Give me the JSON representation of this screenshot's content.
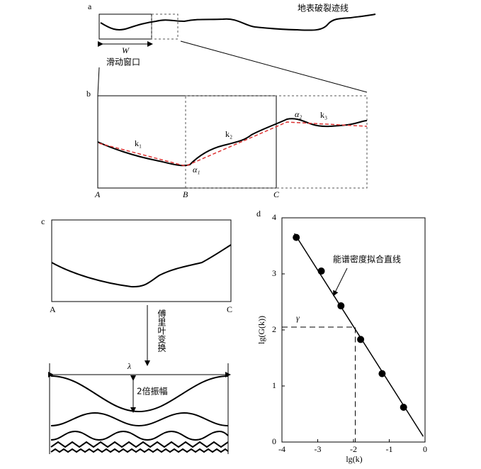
{
  "panel_a": {
    "label": "a",
    "trace_label": "地表破裂迹线",
    "window_width": "W",
    "window_label": "滑动窗口"
  },
  "panel_b": {
    "label": "b",
    "slopes": [
      "k₁",
      "k₂",
      "k₃"
    ],
    "angles": [
      "α₁",
      "α₂"
    ],
    "points": [
      "A",
      "B",
      "C"
    ]
  },
  "panel_c": {
    "label": "c",
    "points": [
      "A",
      "C"
    ],
    "transform": "傅里叶变换",
    "wavelength": "λ",
    "amplitude": "2倍振幅"
  },
  "panel_d": {
    "label": "d",
    "type": "scatter",
    "x_label": "lg(k)",
    "y_label": "lg(G(k))",
    "xlim": [
      -4,
      0
    ],
    "ylim": [
      0,
      4
    ],
    "xticks": [
      -4,
      -3,
      -2,
      -1,
      0
    ],
    "yticks": [
      0,
      1,
      2,
      3,
      4
    ],
    "x": [
      -3.6,
      -2.9,
      -2.35,
      -1.8,
      -1.2,
      -0.6
    ],
    "values": [
      3.65,
      3.05,
      2.43,
      1.83,
      1.22,
      0.62
    ],
    "fit_label": "能谱密度拟合直线",
    "intercept_label": "γ",
    "fit_line": {
      "x": [
        -3.65,
        -0.05
      ],
      "y": [
        3.72,
        0.1
      ]
    },
    "intercept": {
      "x": -1.95,
      "y": 2.05
    }
  }
}
